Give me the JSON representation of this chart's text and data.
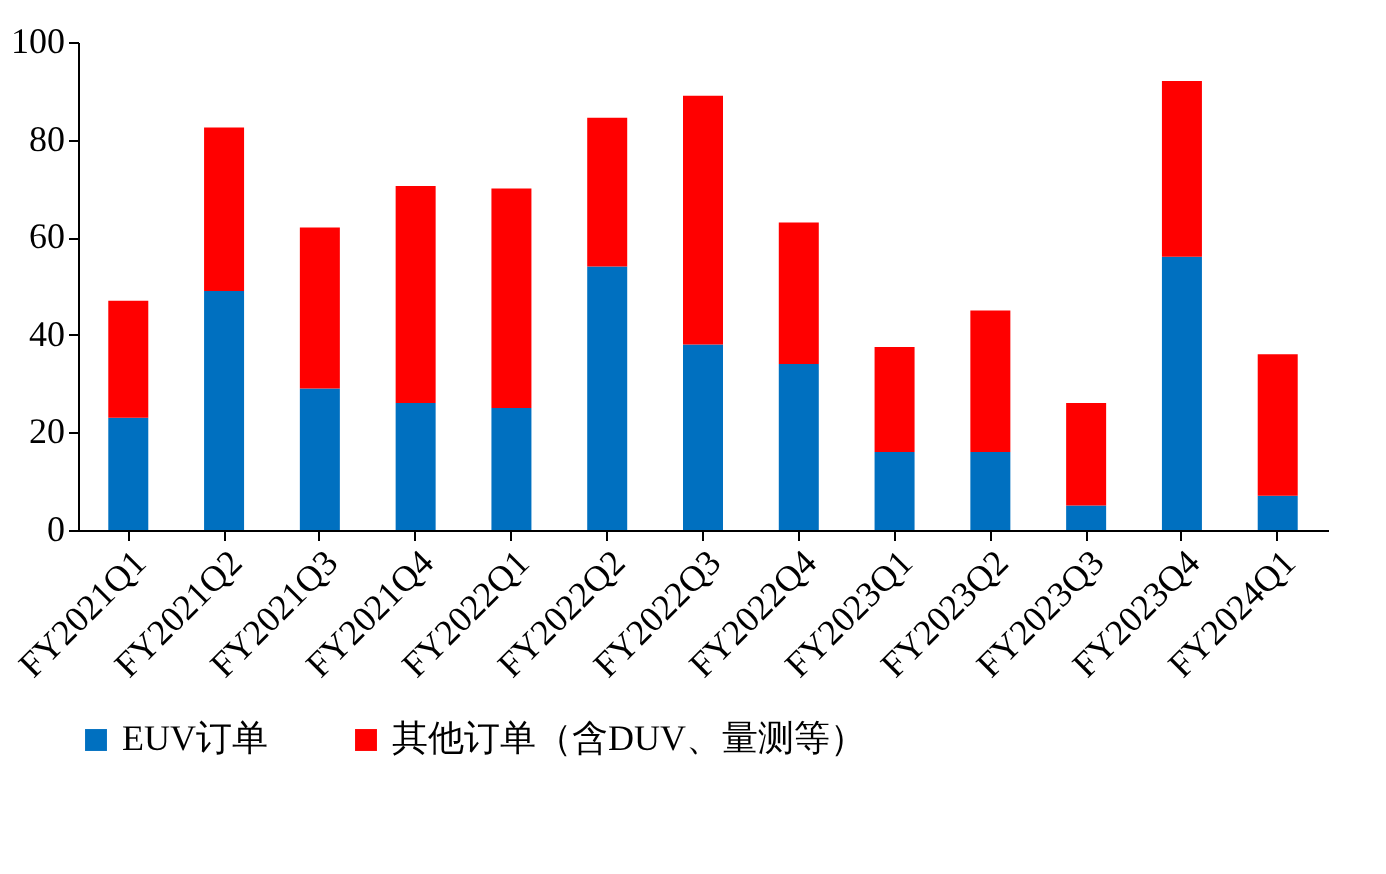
{
  "chart_data": {
    "type": "bar",
    "stacked": true,
    "categories": [
      "FY2021Q1",
      "FY2021Q2",
      "FY2021Q3",
      "FY2021Q4",
      "FY2022Q1",
      "FY2022Q2",
      "FY2022Q3",
      "FY2022Q4",
      "FY2023Q1",
      "FY2023Q2",
      "FY2023Q3",
      "FY2023Q4",
      "FY2024Q1"
    ],
    "series": [
      {
        "name": "EUV订单",
        "color": "#0070c0",
        "values": [
          23,
          49,
          29,
          26,
          25,
          54,
          38,
          34,
          16,
          16,
          5,
          56,
          7
        ]
      },
      {
        "name": "其他订单（含DUV、量测等）",
        "color": "#ff0000",
        "values": [
          24,
          33.5,
          33,
          44.5,
          45,
          30.5,
          51,
          29,
          21.5,
          29,
          21,
          36,
          29
        ]
      }
    ],
    "ylim": [
      0,
      100
    ],
    "yticks": [
      0,
      20,
      40,
      60,
      80,
      100
    ],
    "grid": false,
    "legend": "bottom"
  }
}
